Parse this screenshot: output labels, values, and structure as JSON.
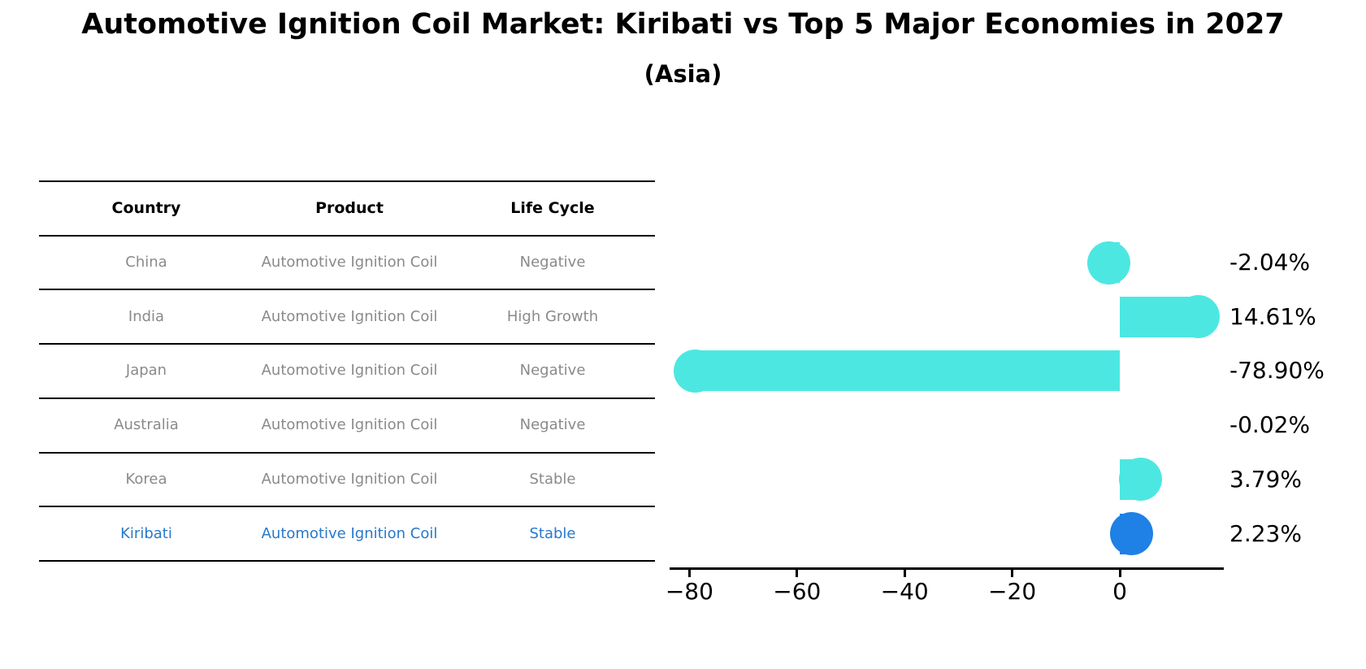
{
  "figure": {
    "title": "Automotive Ignition Coil Market: Kiribati vs Top 5 Major Economies in 2027",
    "subtitle": "(Asia)"
  },
  "table": {
    "headers": [
      "Country",
      "Product",
      "Life Cycle"
    ],
    "rows": [
      {
        "country": "China",
        "product": "Automotive Ignition Coil",
        "life_cycle": "Negative",
        "highlighted": false
      },
      {
        "country": "India",
        "product": "Automotive Ignition Coil",
        "life_cycle": "High Growth",
        "highlighted": false
      },
      {
        "country": "Japan",
        "product": "Automotive Ignition Coil",
        "life_cycle": "Negative",
        "highlighted": false
      },
      {
        "country": "Australia",
        "product": "Automotive Ignition Coil",
        "life_cycle": "Negative",
        "highlighted": false
      },
      {
        "country": "Korea",
        "product": "Automotive Ignition Coil",
        "life_cycle": "Stable",
        "highlighted": false
      },
      {
        "country": "Kiribati",
        "product": "Automotive Ignition Coil",
        "life_cycle": "Stable",
        "highlighted": true
      }
    ]
  },
  "chart_data": {
    "type": "bar",
    "orientation": "horizontal",
    "title": "Automotive Ignition Coil Market: Kiribati vs Top 5 Major Economies in 2027 (Asia)",
    "categories": [
      "China",
      "India",
      "Japan",
      "Australia",
      "Korea",
      "Kiribati"
    ],
    "values": [
      -2.04,
      14.61,
      -78.9,
      -0.02,
      3.79,
      2.23
    ],
    "value_labels": [
      "-2.04%",
      "14.61%",
      "-78.90%",
      "-0.02%",
      "3.79%",
      "2.23%"
    ],
    "x_tick_values": [
      -80,
      -60,
      -40,
      -20,
      0
    ],
    "x_tick_labels": [
      "−80",
      "−60",
      "−40",
      "−20",
      "0"
    ],
    "xlim": [
      -84,
      19.5
    ],
    "grid": false,
    "legend": "none",
    "highlight_index": 5
  },
  "colors": {
    "bar_default": "#4DE7E2",
    "bar_highlight": "#1F80E5",
    "table_text": "#8A8A8A",
    "table_highlight_text": "#2878CB",
    "header_text": "#000000",
    "axis": "#000000"
  }
}
